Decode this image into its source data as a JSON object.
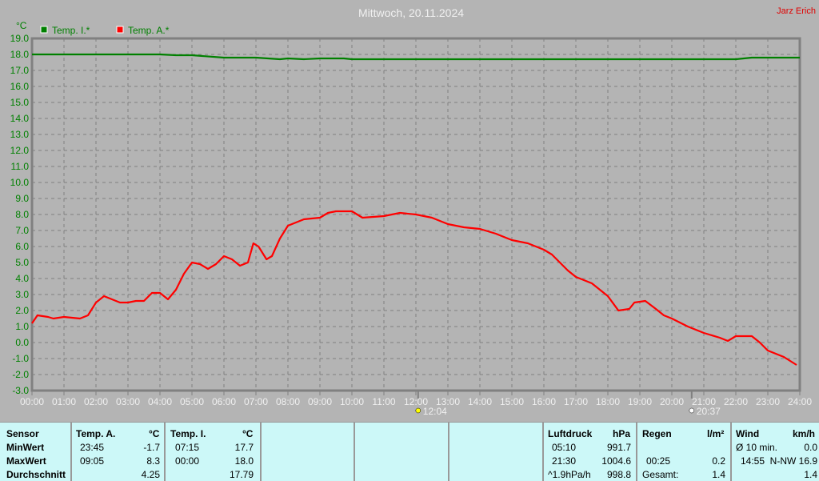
{
  "title": "Mittwoch, 20.11.2024",
  "author": "Jarz Erich",
  "chart_data": {
    "type": "line",
    "ylabel": "°C",
    "ylim": [
      -3,
      19
    ],
    "xlim": [
      0,
      24
    ],
    "yticks": [
      "19.0",
      "18.0",
      "17.0",
      "16.0",
      "15.0",
      "14.0",
      "13.0",
      "12.0",
      "11.0",
      "10.0",
      "9.0",
      "8.0",
      "7.0",
      "6.0",
      "5.0",
      "4.0",
      "3.0",
      "2.0",
      "1.0",
      "0.0",
      "-1.0",
      "-2.0",
      "-3.0"
    ],
    "xticks": [
      "00:00",
      "01:00",
      "02:00",
      "03:00",
      "04:00",
      "05:00",
      "06:00",
      "07:00",
      "08:00",
      "09:00",
      "10:00",
      "11:00",
      "12:00",
      "13:00",
      "14:00",
      "15:00",
      "16:00",
      "17:00",
      "18:00",
      "19:00",
      "20:00",
      "21:00",
      "22:00",
      "23:00",
      "24:00"
    ],
    "grid": true,
    "legend": "top-left",
    "series": [
      {
        "name": "Temp. I.*",
        "color": "#008000",
        "x": [
          0,
          4,
          4.5,
          5,
          6,
          7,
          7.75,
          8,
          8.5,
          9,
          9.75,
          10,
          16,
          22,
          22.5,
          24
        ],
        "y": [
          18.0,
          18.0,
          17.95,
          17.95,
          17.8,
          17.8,
          17.7,
          17.75,
          17.7,
          17.75,
          17.75,
          17.7,
          17.7,
          17.7,
          17.8,
          17.8
        ]
      },
      {
        "name": "Temp. A.*",
        "color": "#ff0000",
        "x": [
          0,
          0.17,
          0.5,
          0.67,
          1,
          1.5,
          1.75,
          2,
          2.25,
          2.5,
          2.75,
          3,
          3.25,
          3.5,
          3.75,
          4,
          4.25,
          4.5,
          4.75,
          5,
          5.25,
          5.5,
          5.75,
          6,
          6.25,
          6.5,
          6.75,
          6.92,
          7.08,
          7.33,
          7.5,
          7.75,
          8,
          8.5,
          9,
          9.25,
          9.5,
          10,
          10.33,
          11,
          11.5,
          12,
          12.5,
          13,
          13.5,
          14,
          14.5,
          15,
          15.5,
          16,
          16.25,
          16.5,
          16.75,
          17,
          17.5,
          18,
          18.33,
          18.67,
          18.83,
          19.17,
          19.5,
          19.75,
          20,
          20.5,
          20.75,
          21,
          21.5,
          21.75,
          22,
          22.5,
          22.75,
          23,
          23.5,
          23.9
        ],
        "y": [
          1.2,
          1.7,
          1.6,
          1.5,
          1.6,
          1.5,
          1.7,
          2.5,
          2.9,
          2.7,
          2.5,
          2.5,
          2.6,
          2.6,
          3.1,
          3.1,
          2.7,
          3.3,
          4.3,
          5.0,
          4.9,
          4.6,
          4.9,
          5.4,
          5.2,
          4.8,
          5.0,
          6.2,
          6.0,
          5.2,
          5.4,
          6.5,
          7.3,
          7.7,
          7.8,
          8.1,
          8.2,
          8.2,
          7.8,
          7.9,
          8.1,
          8.0,
          7.8,
          7.4,
          7.2,
          7.1,
          6.8,
          6.4,
          6.2,
          5.8,
          5.5,
          5.0,
          4.5,
          4.1,
          3.7,
          2.9,
          2.0,
          2.1,
          2.5,
          2.6,
          2.1,
          1.7,
          1.5,
          1.0,
          0.8,
          0.6,
          0.3,
          0.1,
          0.4,
          0.4,
          0.0,
          -0.5,
          -0.9,
          -1.4
        ]
      }
    ],
    "annotations": [
      {
        "time": "12:04",
        "x": 12.07
      },
      {
        "time": "20:37",
        "x": 20.62
      }
    ]
  },
  "table": {
    "sensor": {
      "h": "Sensor",
      "min": "MinWert",
      "max": "MaxWert",
      "avg": "Durchschnitt"
    },
    "ta": {
      "h": "Temp. A.",
      "u": "°C",
      "mint": "23:45",
      "minv": "-1.7",
      "maxt": "09:05",
      "maxv": "8.3",
      "avg": "4.25"
    },
    "ti": {
      "h": "Temp. I.",
      "u": "°C",
      "mint": "07:15",
      "minv": "17.7",
      "maxt": "00:00",
      "maxv": "18.0",
      "avg": "17.79"
    },
    "lp": {
      "h": "Luftdruck",
      "u": "hPa",
      "mint": "05:10",
      "minv": "991.7",
      "maxt": "21:30",
      "maxv": "1004.6",
      "trend": "^1.9hPa/h",
      "avg": "998.8"
    },
    "rain": {
      "h": "Regen",
      "u": "l/m²",
      "maxt": "00:25",
      "maxv": "0.2",
      "tl": "Gesamt:",
      "tv": "1.4"
    },
    "wind": {
      "h": "Wind",
      "u": "km/h",
      "avgl": "Ø 10 min.",
      "avgv": "0.0",
      "maxt": "14:55",
      "maxv": "N-NW 16.9",
      "v3": "1.4"
    }
  }
}
